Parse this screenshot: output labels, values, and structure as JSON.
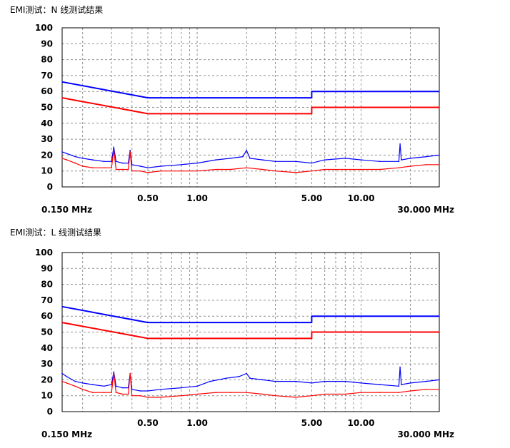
{
  "panels": [
    {
      "title": "EMI测试：N 线测试结果"
    },
    {
      "title": "EMI测试：L 线测试结果"
    }
  ],
  "chart_data": [
    {
      "type": "line",
      "title": "EMI测试：N 线测试结果",
      "xscale": "log",
      "xlim": [
        0.15,
        30
      ],
      "ylim": [
        0,
        100
      ],
      "yticks": [
        "100",
        "90",
        "80",
        "70",
        "60",
        "50",
        "40",
        "30",
        "20",
        "10",
        "0"
      ],
      "xticks": [
        {
          "value": 0.5,
          "label": "0.50"
        },
        {
          "value": 1.0,
          "label": "1.00"
        },
        {
          "value": 5.0,
          "label": "5.00"
        },
        {
          "value": 10.0,
          "label": "10.00"
        }
      ],
      "range_start_label": "0.150 MHz",
      "range_end_label": "30.000 MHz",
      "grid": true,
      "colors": {
        "quasi_peak": "#0000ff",
        "average": "#ff0000"
      },
      "series": [
        {
          "role": "limit-qp",
          "color": "#0000ff",
          "x": [
            0.15,
            0.5,
            5.0,
            5.0,
            30.0
          ],
          "y": [
            66,
            56,
            56,
            60,
            60
          ]
        },
        {
          "role": "limit-avg",
          "color": "#ff0000",
          "x": [
            0.15,
            0.5,
            5.0,
            5.0,
            30.0
          ],
          "y": [
            56,
            46,
            46,
            50,
            50
          ]
        },
        {
          "role": "measured-qp",
          "color": "#0000ff",
          "x": [
            0.15,
            0.16,
            0.18,
            0.2,
            0.23,
            0.27,
            0.3,
            0.31,
            0.32,
            0.35,
            0.38,
            0.39,
            0.4,
            0.45,
            0.5,
            0.6,
            0.8,
            1.0,
            1.3,
            1.6,
            1.9,
            2.0,
            2.1,
            2.5,
            3.0,
            4.0,
            5.0,
            6.0,
            8.0,
            10.0,
            13.0,
            17.0,
            17.3,
            17.6,
            20.0,
            25.0,
            30.0
          ],
          "y": [
            22,
            21,
            19,
            18,
            17,
            16,
            16,
            25,
            16,
            15,
            15,
            23,
            14,
            13,
            12,
            13,
            14,
            15,
            17,
            18,
            19,
            23,
            18,
            17,
            16,
            16,
            15,
            17,
            18,
            17,
            16,
            16,
            27,
            17,
            18,
            19,
            20
          ]
        },
        {
          "role": "measured-avg",
          "color": "#ff0000",
          "x": [
            0.15,
            0.16,
            0.18,
            0.2,
            0.23,
            0.27,
            0.3,
            0.31,
            0.32,
            0.35,
            0.38,
            0.39,
            0.4,
            0.45,
            0.5,
            0.6,
            0.8,
            1.0,
            1.3,
            1.6,
            2.0,
            2.5,
            3.0,
            4.0,
            5.0,
            6.0,
            8.0,
            10.0,
            13.0,
            17.0,
            20.0,
            25.0,
            30.0
          ],
          "y": [
            18,
            17,
            15,
            13,
            12,
            12,
            12,
            23,
            11,
            11,
            11,
            22,
            10,
            10,
            9,
            10,
            10,
            10,
            11,
            11,
            12,
            11,
            10,
            9,
            10,
            11,
            11,
            11,
            11,
            12,
            13,
            14,
            14
          ]
        }
      ]
    },
    {
      "type": "line",
      "title": "EMI测试：L 线测试结果",
      "xscale": "log",
      "xlim": [
        0.15,
        30
      ],
      "ylim": [
        0,
        100
      ],
      "yticks": [
        "100",
        "90",
        "80",
        "70",
        "60",
        "50",
        "40",
        "30",
        "20",
        "10",
        "0"
      ],
      "xticks": [
        {
          "value": 0.5,
          "label": "0.50"
        },
        {
          "value": 1.0,
          "label": "1.00"
        },
        {
          "value": 5.0,
          "label": "5.00"
        },
        {
          "value": 10.0,
          "label": "10.00"
        }
      ],
      "range_start_label": "0.150 MHz",
      "range_end_label": "30.000 MHz",
      "grid": true,
      "colors": {
        "quasi_peak": "#0000ff",
        "average": "#ff0000"
      },
      "series": [
        {
          "role": "limit-qp",
          "color": "#0000ff",
          "x": [
            0.15,
            0.5,
            5.0,
            5.0,
            30.0
          ],
          "y": [
            66,
            56,
            56,
            60,
            60
          ]
        },
        {
          "role": "limit-avg",
          "color": "#ff0000",
          "x": [
            0.15,
            0.5,
            5.0,
            5.0,
            30.0
          ],
          "y": [
            56,
            46,
            46,
            50,
            50
          ]
        },
        {
          "role": "measured-qp",
          "color": "#0000ff",
          "x": [
            0.15,
            0.16,
            0.18,
            0.2,
            0.23,
            0.27,
            0.3,
            0.31,
            0.32,
            0.35,
            0.38,
            0.39,
            0.4,
            0.45,
            0.5,
            0.6,
            0.8,
            1.0,
            1.2,
            1.5,
            1.8,
            2.0,
            2.1,
            2.5,
            3.0,
            4.0,
            5.0,
            6.0,
            8.0,
            10.0,
            13.0,
            17.0,
            17.3,
            17.6,
            20.0,
            25.0,
            30.0
          ],
          "y": [
            24,
            22,
            19,
            18,
            17,
            16,
            17,
            25,
            16,
            15,
            15,
            24,
            14,
            13,
            13,
            14,
            15,
            16,
            19,
            21,
            22,
            24,
            21,
            20,
            19,
            19,
            18,
            19,
            19,
            18,
            17,
            16,
            28,
            17,
            18,
            19,
            20
          ]
        },
        {
          "role": "measured-avg",
          "color": "#ff0000",
          "x": [
            0.15,
            0.16,
            0.18,
            0.2,
            0.23,
            0.27,
            0.3,
            0.31,
            0.32,
            0.35,
            0.38,
            0.39,
            0.4,
            0.45,
            0.5,
            0.6,
            0.8,
            1.0,
            1.3,
            1.6,
            2.0,
            2.5,
            3.0,
            4.0,
            5.0,
            6.0,
            8.0,
            10.0,
            13.0,
            17.0,
            20.0,
            25.0,
            30.0
          ],
          "y": [
            19,
            18,
            16,
            14,
            12,
            12,
            12,
            24,
            12,
            11,
            11,
            24,
            10,
            10,
            9,
            9,
            10,
            11,
            12,
            12,
            12,
            11,
            10,
            9,
            10,
            11,
            11,
            12,
            12,
            12,
            13,
            14,
            14
          ]
        }
      ]
    }
  ]
}
